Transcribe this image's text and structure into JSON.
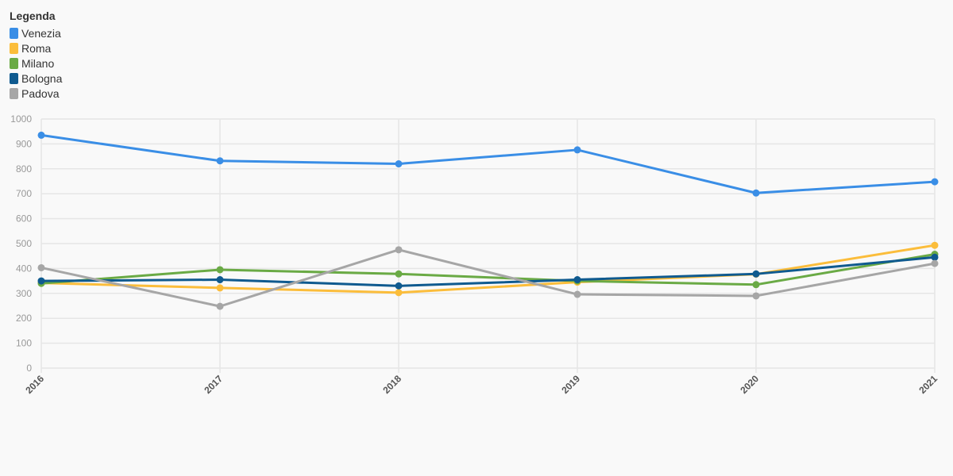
{
  "legend": {
    "title": "Legenda"
  },
  "chart_data": {
    "type": "line",
    "title": "",
    "xlabel": "",
    "ylabel": "",
    "x": [
      "2016",
      "2017",
      "2018",
      "2019",
      "2020",
      "2021"
    ],
    "ylim": [
      0,
      1000
    ],
    "yticks": [
      0,
      100,
      200,
      300,
      400,
      500,
      600,
      700,
      800,
      900,
      1000
    ],
    "grid": true,
    "legend_position": "top-left",
    "series": [
      {
        "name": "Venezia",
        "color": "#3a8ee6",
        "values": [
          935,
          832,
          820,
          876,
          703,
          748
        ]
      },
      {
        "name": "Roma",
        "color": "#fbbd3b",
        "values": [
          342,
          322,
          303,
          345,
          377,
          493
        ]
      },
      {
        "name": "Milano",
        "color": "#6aaa45",
        "values": [
          340,
          395,
          378,
          350,
          335,
          457
        ]
      },
      {
        "name": "Bologna",
        "color": "#0f5a8f",
        "values": [
          350,
          355,
          330,
          355,
          378,
          445
        ]
      },
      {
        "name": "Padova",
        "color": "#a6a6a6",
        "values": [
          403,
          248,
          475,
          296,
          290,
          420
        ]
      }
    ]
  }
}
